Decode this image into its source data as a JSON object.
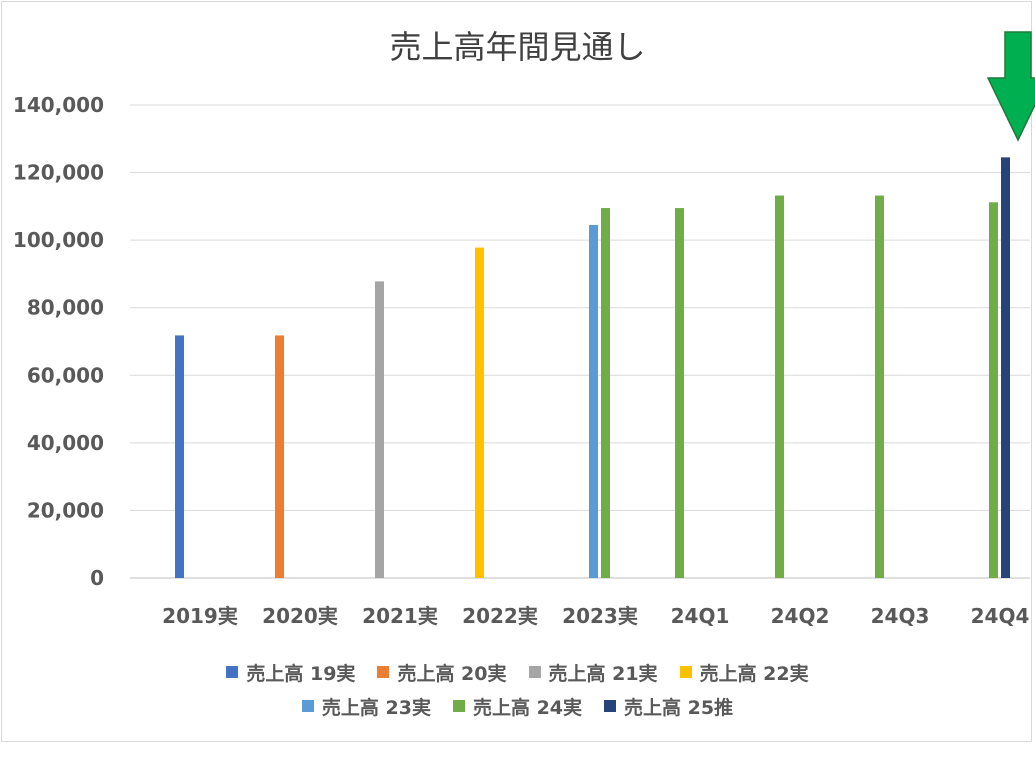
{
  "chart_data": {
    "type": "bar",
    "title": "売上高年間見通し",
    "categories": [
      "2019実",
      "2020実",
      "2021実",
      "2022実",
      "2023実",
      "24Q1",
      "24Q2",
      "24Q3",
      "24Q4"
    ],
    "ylim": [
      0,
      140000
    ],
    "yticks": [
      "0",
      "20,000",
      "40,000",
      "60,000",
      "80,000",
      "100,000",
      "120,000",
      "140,000"
    ],
    "ytick_values": [
      0,
      20000,
      40000,
      60000,
      80000,
      100000,
      120000,
      140000
    ],
    "grid": true,
    "legend_position": "bottom",
    "series": [
      {
        "name": "売上高 19実",
        "color": "#4472C4",
        "values": [
          71800,
          null,
          null,
          null,
          null,
          null,
          null,
          null,
          null
        ]
      },
      {
        "name": "売上高 20実",
        "color": "#ED7D31",
        "values": [
          null,
          71800,
          null,
          null,
          null,
          null,
          null,
          null,
          null
        ]
      },
      {
        "name": "売上高 21実",
        "color": "#A5A5A5",
        "values": [
          null,
          null,
          87800,
          null,
          null,
          null,
          null,
          null,
          null
        ]
      },
      {
        "name": "売上高 22実",
        "color": "#FFC000",
        "values": [
          null,
          null,
          null,
          97800,
          null,
          null,
          null,
          null,
          null
        ]
      },
      {
        "name": "売上高 23実",
        "color": "#5B9BD5",
        "values": [
          null,
          null,
          null,
          null,
          104500,
          null,
          null,
          null,
          null
        ]
      },
      {
        "name": "売上高 24実",
        "color": "#70AD47",
        "values": [
          null,
          null,
          null,
          null,
          109500,
          109500,
          113200,
          113200,
          111200
        ]
      },
      {
        "name": "売上高 25推",
        "color": "#264478",
        "values": [
          null,
          null,
          null,
          null,
          null,
          null,
          null,
          null,
          124500
        ]
      }
    ],
    "annotation": {
      "type": "arrow",
      "color": "#00B050",
      "target_category": "24Q4"
    }
  }
}
